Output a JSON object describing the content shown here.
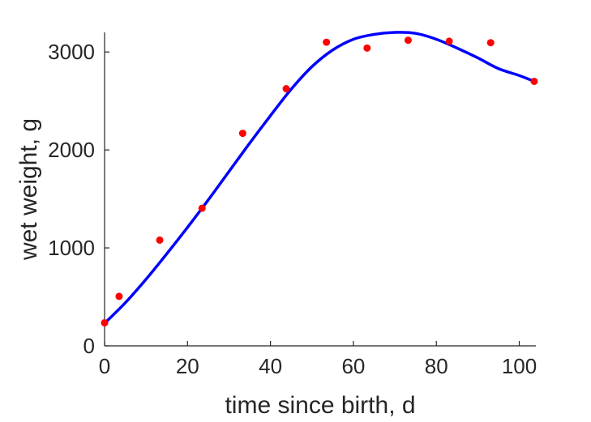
{
  "chart_data": {
    "type": "scatter",
    "title": "",
    "xlabel": "time since birth, d",
    "ylabel": "wet weight, g",
    "xlim": [
      0,
      104
    ],
    "ylim": [
      0,
      3200
    ],
    "xticks": [
      0,
      20,
      40,
      60,
      80,
      100
    ],
    "yticks": [
      0,
      1000,
      2000,
      3000
    ],
    "grid": false,
    "legend": "none",
    "series": [
      {
        "kind": "points",
        "color": "#ff0000",
        "x": [
          0,
          3.5,
          13.3,
          23.5,
          33.3,
          43.8,
          53.5,
          63.3,
          73.2,
          83.1,
          93.1,
          103.6
        ],
        "y": [
          235,
          505,
          1080,
          1405,
          2170,
          2625,
          3100,
          3040,
          3120,
          3110,
          3095,
          2700
        ]
      },
      {
        "kind": "line",
        "color": "#0000ff",
        "x": [
          0,
          5,
          10,
          15,
          20,
          25,
          30,
          35,
          40,
          45,
          50,
          55,
          60,
          65,
          70,
          75,
          80,
          85,
          90,
          95,
          100,
          103.6
        ],
        "y": [
          230,
          440,
          680,
          940,
          1210,
          1490,
          1780,
          2070,
          2350,
          2620,
          2850,
          3020,
          3130,
          3180,
          3200,
          3190,
          3130,
          3040,
          2940,
          2830,
          2760,
          2700
        ]
      }
    ]
  }
}
